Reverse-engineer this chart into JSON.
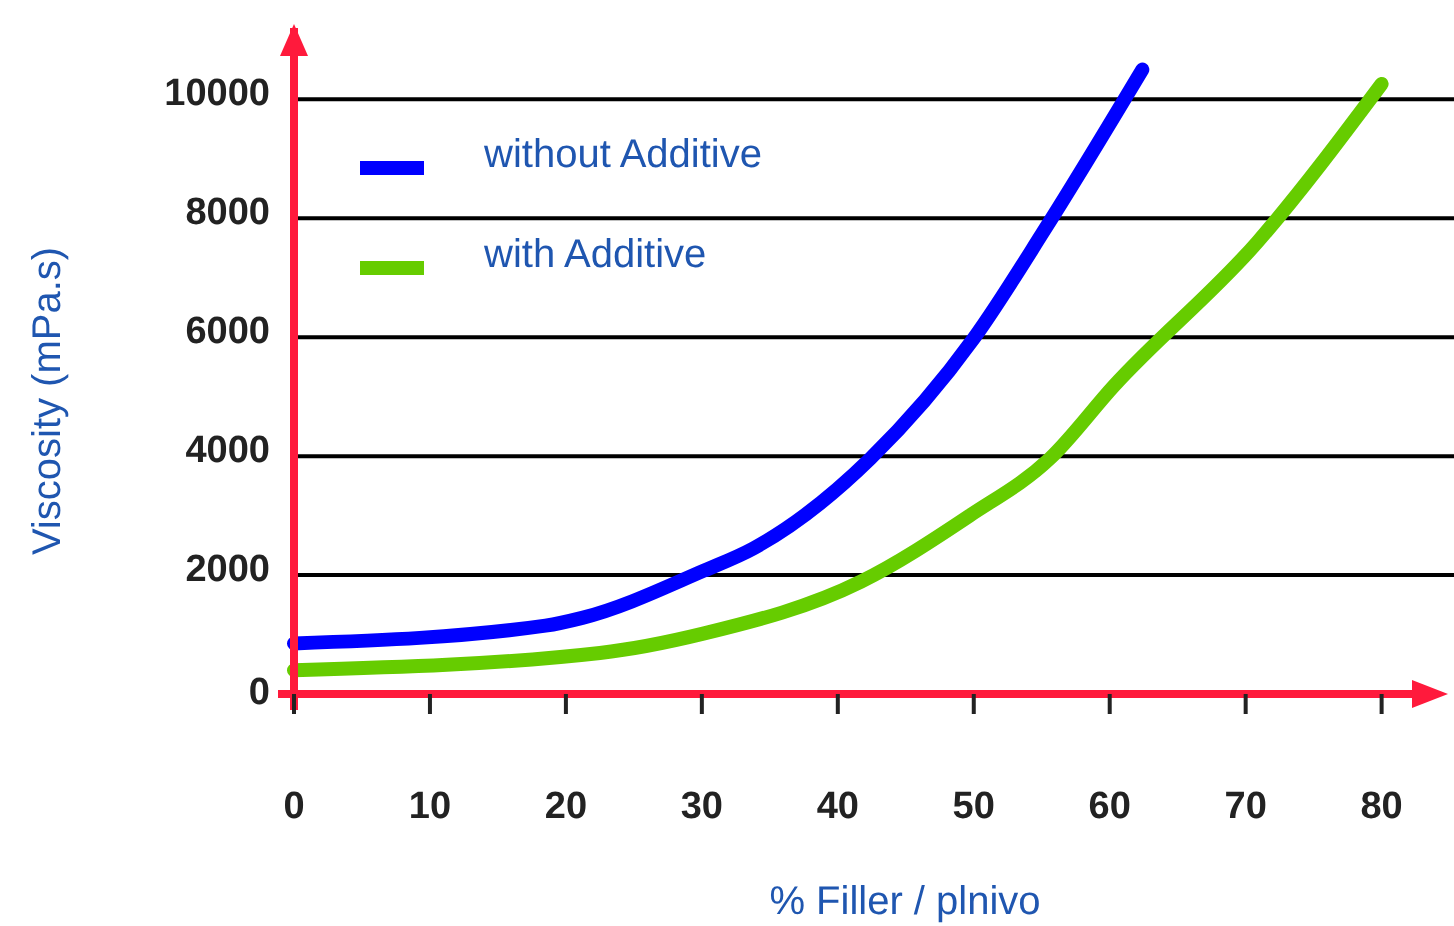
{
  "chart_data": {
    "type": "line",
    "xlabel": "% Filler / plnivo",
    "ylabel": "Viscosity (mPa.s)",
    "xlim": [
      0,
      84
    ],
    "ylim": [
      0,
      11200
    ],
    "xticks": [
      0,
      10,
      20,
      30,
      40,
      50,
      60,
      70,
      80
    ],
    "yticks": [
      0,
      2000,
      4000,
      6000,
      8000,
      10000
    ],
    "grid": "y",
    "legend": "top left",
    "marker": "none",
    "line_style": "solid",
    "series": [
      {
        "name": "without Additive",
        "color": "#0000ff",
        "x": [
          0,
          18.5,
          21.2,
          30.1,
          33.8,
          42.4,
          50,
          55.3,
          62.4
        ],
        "values": [
          850,
          1150,
          1280,
          2070,
          2450,
          3960,
          5980,
          7840,
          10500
        ]
      },
      {
        "name": "with Additive",
        "color": "#66cc00",
        "x": [
          0,
          22.5,
          30.1,
          41.7,
          49.7,
          55.6,
          60.3,
          70.9,
          80
        ],
        "values": [
          400,
          690,
          1015,
          1890,
          3000,
          3960,
          5180,
          7610,
          10260
        ]
      }
    ]
  }
}
